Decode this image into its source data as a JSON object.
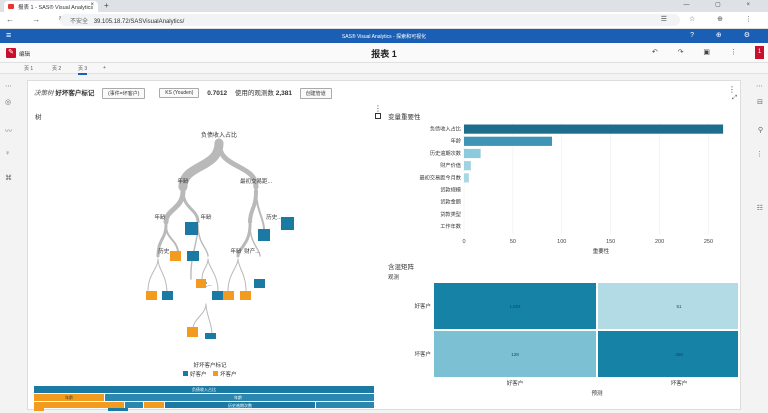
{
  "browser": {
    "tab_title": "报表 1 - SAS® Visual Analytics",
    "tab_close": "×",
    "new_tab": "+",
    "win_controls": "— ▢ ×",
    "nav": "← → ↻",
    "insecure_label": "不安全",
    "url": "39.105.18.72/SASVisualAnalytics/",
    "addr_icons": "☰ ☆ ⊕ ⋮"
  },
  "sas_header": {
    "menu_glyph": "≡",
    "app_title": "SAS® Visual Analytics - 探索和可视化",
    "icons": "? ⊕ ⚙"
  },
  "report_toolbar": {
    "edit_glyph": "✎",
    "edit_label": "编辑",
    "title": "报表 1",
    "icons": "↶ ↷ ▣ ⋮",
    "right_badge": "1"
  },
  "page_tabs": [
    "页 1",
    "页 2",
    "页 3",
    "+"
  ],
  "active_page": 2,
  "left_icons": [
    "⋯",
    "◎",
    "〰",
    "♀",
    "⌘"
  ],
  "right_icons": [
    "⋯",
    "⊟",
    "⚲",
    "⋮",
    "☷"
  ],
  "canvas": {
    "more_glyph": "⋮",
    "expand_glyph": "⤢",
    "panel_dots": "⋮"
  },
  "decision_tree_header": {
    "object_label": "决策树",
    "target": "好坏客户标记",
    "event_pill": "(事件=坏客户)",
    "stat_pill": "KS (Youden)",
    "stat_value": "0.7012",
    "obs_label": "使用的观测数",
    "obs_value": "2,381",
    "pipeline_pill": "创建管道"
  },
  "tree": {
    "title": "树",
    "root_label": "负债收入占比",
    "split_labels": [
      "年龄",
      "年龄",
      "年龄",
      "最初交易距...",
      "历史...",
      "历史...",
      "年龄",
      "财产...",
      "历史..."
    ],
    "legend_title": "好坏客户标记",
    "legend": [
      {
        "name": "好客户",
        "color": "#1b7aa4"
      },
      {
        "name": "坏客户",
        "color": "#f29b1f"
      }
    ],
    "icicle_labels": [
      "负债收入占比",
      "年龄",
      "年龄",
      "历史逾期次数"
    ]
  },
  "variable_importance": {
    "title": "变量重要性",
    "xlabel": "重要性",
    "ticks": [
      0,
      50,
      100,
      150,
      200,
      250
    ],
    "xlim": [
      0,
      270
    ],
    "vars": [
      {
        "name": "负债收入占比",
        "value": 265
      },
      {
        "name": "年龄",
        "value": 90
      },
      {
        "name": "历史逾期次数",
        "value": 17
      },
      {
        "name": "财产价值",
        "value": 7
      },
      {
        "name": "最初交易距今月数",
        "value": 5
      },
      {
        "name": "贷款规模",
        "value": 0
      },
      {
        "name": "贷款金额",
        "value": 0
      },
      {
        "name": "贷款类型",
        "value": 0
      },
      {
        "name": "工作年数",
        "value": 0
      }
    ]
  },
  "confusion_matrix": {
    "title": "含混矩阵",
    "observed_label": "观测",
    "predicted_label": "预测",
    "rows": [
      "好客户",
      "坏客户"
    ],
    "cols": [
      "好客户",
      "坏客户"
    ],
    "cells": [
      [
        "1,834",
        "51"
      ],
      [
        "128",
        "368"
      ]
    ],
    "colors": [
      [
        "#1582a6",
        "#b2dbe6"
      ],
      [
        "#7cc0d3",
        "#1582a6"
      ]
    ]
  }
}
